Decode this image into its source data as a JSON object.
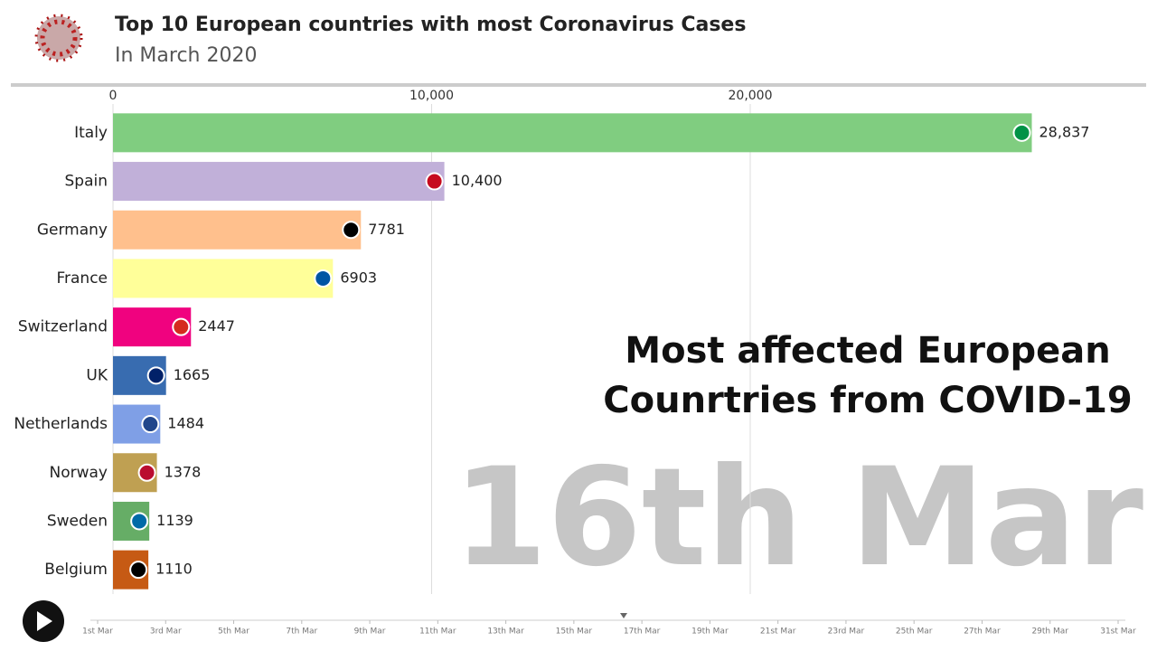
{
  "chart_data": {
    "type": "bar",
    "orientation": "horizontal",
    "title": "Top 10 European countries with most Coronavirus Cases",
    "subtitle": "In March 2020",
    "categories": [
      "Italy",
      "Spain",
      "Germany",
      "France",
      "Switzerland",
      "UK",
      "Netherlands",
      "Norway",
      "Sweden",
      "Belgium"
    ],
    "values": [
      28837,
      10400,
      7781,
      6903,
      2447,
      1665,
      1484,
      1378,
      1139,
      1110
    ],
    "value_labels": [
      "28,837",
      "10,400",
      "7781",
      "6903",
      "2447",
      "1665",
      "1484",
      "1378",
      "1139",
      "1110"
    ],
    "colors": [
      "#80cd80",
      "#c1b0d9",
      "#ffc08d",
      "#ffff99",
      "#f0027f",
      "#386cb0",
      "#7f9fe6",
      "#bfa052",
      "#66ad66",
      "#c65a14"
    ],
    "xlim": [
      0,
      32000
    ],
    "xticks": [
      0,
      {
        "value": 10000,
        "label": "10,000"
      },
      {
        "value": 20000,
        "label": "20,000"
      }
    ],
    "grid": true,
    "date": "16th Mar",
    "annotation": [
      "Most affected European",
      "Counrtries from COVID-19"
    ],
    "timeline": [
      "1st Mar",
      "3rd Mar",
      "5th Mar",
      "7th Mar",
      "9th Mar",
      "11th Mar",
      "13th Mar",
      "15th Mar",
      "17th Mar",
      "19th Mar",
      "21st Mar",
      "23rd Mar",
      "25th Mar",
      "27th Mar",
      "29th Mar",
      "31st Mar"
    ]
  }
}
